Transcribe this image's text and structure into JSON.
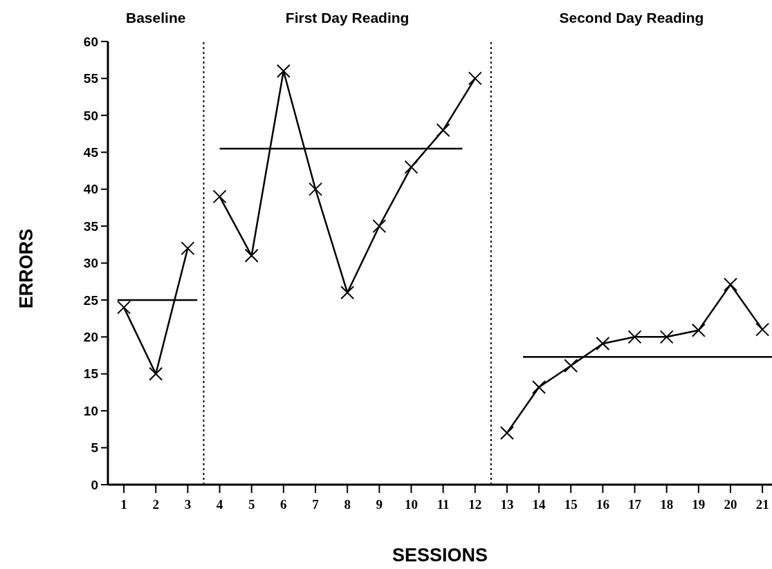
{
  "chart_data": {
    "type": "line",
    "xlabel": "SESSIONS",
    "ylabel": "ERRORS",
    "annotations": [
      "Baseline",
      "First Day Reading",
      "Second Day Reading"
    ],
    "xlim": [
      0.5,
      21.3
    ],
    "xticks": [
      1,
      2,
      3,
      4,
      5,
      6,
      7,
      8,
      9,
      10,
      11,
      12,
      13,
      14,
      15,
      16,
      17,
      18,
      19,
      20,
      21
    ],
    "ylim": [
      0,
      60
    ],
    "yticks": [
      0,
      5,
      10,
      15,
      20,
      25,
      30,
      35,
      40,
      45,
      50,
      55,
      60
    ],
    "marker": "cross",
    "line_style": "solid",
    "ref_lines": [
      {
        "axis": "x",
        "value": 3.5,
        "color": "#000000",
        "line_style": "dotted"
      },
      {
        "axis": "x",
        "value": 12.5,
        "color": "#000000",
        "line_style": "dotted"
      }
    ],
    "series": [
      {
        "color": "#000000",
        "x": [
          1,
          2,
          3
        ],
        "values": [
          24,
          15,
          32
        ]
      },
      {
        "color": "#000000",
        "x": [
          4,
          5,
          6,
          7,
          8,
          9,
          10,
          11,
          12
        ],
        "values": [
          39,
          31,
          56,
          40,
          26,
          35,
          43,
          48,
          55
        ]
      },
      {
        "color": "#000000",
        "x": [
          13,
          14,
          15,
          16,
          17,
          18,
          19,
          20,
          21
        ],
        "values": [
          7,
          13.2,
          16.1,
          19.1,
          20,
          20,
          20.9,
          27.1,
          21
        ]
      },
      {
        "color": "#000000",
        "marker": "none",
        "x": [
          0.8,
          3.3
        ],
        "values": [
          25,
          25
        ]
      },
      {
        "color": "#000000",
        "marker": "none",
        "x": [
          4,
          11.6
        ],
        "values": [
          45.5,
          45.5
        ]
      },
      {
        "color": "#000000",
        "marker": "none",
        "x": [
          13.5,
          21.3
        ],
        "values": [
          17.3,
          17.3
        ]
      }
    ]
  }
}
